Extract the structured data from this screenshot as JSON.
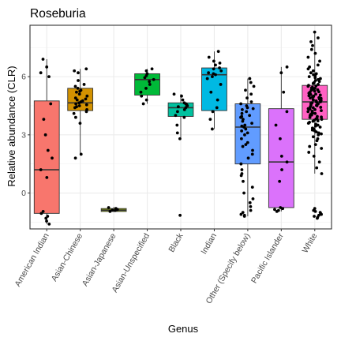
{
  "chart_data": {
    "type": "boxplot",
    "title": "Roseburia",
    "xlabel": "Genus",
    "ylabel": "Relative abundance (CLR)",
    "ylim": [
      -1.85,
      8.65
    ],
    "yticks": [
      0,
      3,
      6
    ],
    "grid": true,
    "legend": "none",
    "categories": [
      "American Indian",
      "Asian-Chinese",
      "Asian-Japanese",
      "Asian-Unspecified",
      "Black",
      "Indian",
      "Other (Specify below)",
      "Pacific Islander",
      "White"
    ],
    "boxes": [
      {
        "category": "American Indian",
        "q1": -1.05,
        "median": 1.2,
        "q3": 4.75,
        "whisker_low": -1.6,
        "whisker_high": 6.9,
        "color": "#F8766D"
      },
      {
        "category": "Asian-Chinese",
        "q1": 4.25,
        "median": 4.65,
        "q3": 5.4,
        "whisker_low": 2.0,
        "whisker_high": 6.4,
        "color": "#D39200"
      },
      {
        "category": "Asian-Japanese",
        "q1": -0.95,
        "median": -0.88,
        "q3": -0.8,
        "whisker_low": -0.98,
        "whisker_high": -0.72,
        "color": "#93AA00"
      },
      {
        "category": "Asian-Unspecified",
        "q1": 5.05,
        "median": 5.85,
        "q3": 6.15,
        "whisker_low": 4.6,
        "whisker_high": 6.4,
        "color": "#00BA38"
      },
      {
        "category": "Black",
        "q1": 3.95,
        "median": 4.4,
        "q3": 4.65,
        "whisker_low": 2.8,
        "whisker_high": 5.1,
        "color": "#00C19F"
      },
      {
        "category": "Indian",
        "q1": 4.25,
        "median": 6.1,
        "q3": 6.45,
        "whisker_low": 3.3,
        "whisker_high": 7.3,
        "color": "#00B9E3"
      },
      {
        "category": "Other (Specify below)",
        "q1": 1.5,
        "median": 3.4,
        "q3": 4.6,
        "whisker_low": -1.2,
        "whisker_high": 5.9,
        "color": "#619CFF"
      },
      {
        "category": "Pacific Islander",
        "q1": -0.75,
        "median": 1.6,
        "q3": 4.35,
        "whisker_low": -0.95,
        "whisker_high": 6.5,
        "color": "#DB72FB"
      },
      {
        "category": "White",
        "q1": 3.8,
        "median": 4.7,
        "q3": 5.55,
        "whisker_low": 1.0,
        "whisker_high": 8.3,
        "color": "#FF61C3"
      }
    ],
    "points": [
      [
        -1.45,
        -1.2,
        -1.05,
        -0.95,
        -1.3,
        0.8,
        1.2,
        1.8,
        2.2,
        3.0,
        3.8,
        4.6,
        6.0,
        6.2,
        6.5,
        6.9,
        -1.6
      ],
      [
        1.8,
        2.0,
        3.6,
        3.9,
        4.1,
        4.2,
        4.3,
        4.4,
        4.5,
        4.55,
        4.6,
        4.65,
        4.7,
        4.75,
        4.8,
        4.9,
        5.0,
        5.1,
        5.2,
        5.3,
        5.4,
        5.5,
        5.6,
        5.8,
        6.2,
        6.3,
        6.4,
        4.45,
        4.85,
        5.25
      ],
      [
        -0.95,
        -0.9,
        -0.88,
        -0.85,
        -0.8,
        -0.75
      ],
      [
        4.6,
        4.8,
        5.0,
        5.2,
        5.4,
        5.6,
        5.75,
        5.85,
        5.95,
        6.05,
        6.15,
        6.3,
        6.4
      ],
      [
        -1.15,
        2.8,
        3.1,
        3.5,
        3.9,
        4.0,
        4.2,
        4.3,
        4.4,
        4.5,
        4.55,
        4.6,
        4.65,
        4.8,
        5.0,
        5.1,
        4.45
      ],
      [
        3.3,
        3.8,
        4.2,
        4.4,
        4.8,
        5.2,
        5.6,
        5.9,
        6.0,
        6.1,
        6.15,
        6.2,
        6.3,
        6.4,
        6.45,
        6.6,
        6.8,
        7.0,
        7.3,
        6.7
      ],
      [
        -1.2,
        -1.1,
        -1.0,
        -0.9,
        -0.7,
        -0.5,
        -0.3,
        0.0,
        0.3,
        0.6,
        0.9,
        1.2,
        1.5,
        1.8,
        2.0,
        2.2,
        2.4,
        2.6,
        2.8,
        3.0,
        3.1,
        3.2,
        3.3,
        3.4,
        3.5,
        3.6,
        3.7,
        3.8,
        3.9,
        4.0,
        4.1,
        4.2,
        4.3,
        4.4,
        4.5,
        4.6,
        4.7,
        4.9,
        5.1,
        5.3,
        5.5,
        5.7,
        5.9,
        -1.15,
        2.5,
        3.45,
        4.35,
        1.0,
        3.95
      ],
      [
        -0.95,
        -0.9,
        -0.85,
        -0.8,
        -0.75,
        0.6,
        1.2,
        1.6,
        1.9,
        2.8,
        3.5,
        4.2,
        5.2,
        6.2,
        6.5
      ],
      [
        -1.3,
        -1.2,
        -1.1,
        -1.0,
        -0.9,
        -0.8,
        -1.25,
        -1.15,
        -1.05,
        -0.95,
        1.0,
        1.3,
        1.6,
        1.9,
        2.1,
        2.3,
        2.5,
        2.7,
        2.9,
        3.0,
        3.1,
        3.2,
        3.3,
        3.4,
        3.5,
        3.6,
        3.7,
        3.75,
        3.8,
        3.85,
        3.9,
        3.95,
        4.0,
        4.05,
        4.1,
        4.15,
        4.2,
        4.25,
        4.3,
        4.35,
        4.4,
        4.45,
        4.5,
        4.55,
        4.6,
        4.65,
        4.7,
        4.75,
        4.8,
        4.85,
        4.9,
        4.95,
        5.0,
        5.05,
        5.1,
        5.15,
        5.2,
        5.25,
        5.3,
        5.35,
        5.4,
        5.45,
        5.5,
        5.55,
        5.6,
        5.7,
        5.8,
        5.9,
        6.0,
        6.1,
        6.2,
        6.3,
        6.4,
        6.5,
        6.6,
        6.8,
        7.0,
        7.2,
        7.4,
        7.6,
        7.8,
        8.0,
        8.3,
        4.62,
        4.68,
        4.72,
        4.78,
        4.82,
        4.88,
        4.92,
        4.98,
        5.02,
        5.08,
        5.12,
        3.72,
        3.82,
        3.92,
        4.02,
        4.12,
        4.22,
        4.32,
        4.42,
        4.52,
        5.22,
        5.32,
        5.42,
        5.52,
        2.4,
        2.8,
        3.05,
        3.15,
        3.25,
        3.35,
        3.45,
        3.55,
        3.65,
        5.65,
        5.75,
        5.85,
        5.95,
        6.05,
        6.15
      ]
    ]
  }
}
